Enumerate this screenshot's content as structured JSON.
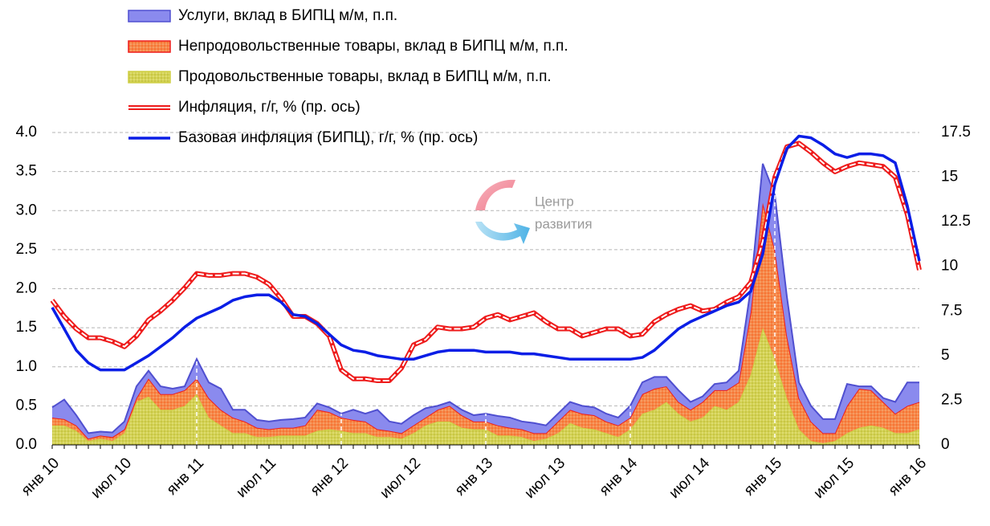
{
  "chart_data": {
    "type": "stacked-area-line",
    "categories": [
      "янв 10",
      null,
      null,
      null,
      null,
      null,
      "июл 10",
      null,
      null,
      null,
      null,
      null,
      "янв 11",
      null,
      null,
      null,
      null,
      null,
      "июл 11",
      null,
      null,
      null,
      null,
      null,
      "янв 12",
      null,
      null,
      null,
      null,
      null,
      "июл 12",
      null,
      null,
      null,
      null,
      null,
      "янв 13",
      null,
      null,
      null,
      null,
      null,
      "июл 13",
      null,
      null,
      null,
      null,
      null,
      "янв 14",
      null,
      null,
      null,
      null,
      null,
      "июл 14",
      null,
      null,
      null,
      null,
      null,
      "янв 15",
      null,
      null,
      null,
      null,
      null,
      "июл 15",
      null,
      null,
      null,
      null,
      null,
      "янв 16"
    ],
    "series": [
      {
        "name": "Услуги, вклад в БИПЦ м/м, п.п.",
        "kind": "area",
        "color": "#8a8aee",
        "stroke": "#4f4fd0",
        "values": [
          0.13,
          0.25,
          0.13,
          0.07,
          0.05,
          0.06,
          0.1,
          0.15,
          0.1,
          0.1,
          0.07,
          0.05,
          0.25,
          0.2,
          0.27,
          0.1,
          0.15,
          0.1,
          0.1,
          0.1,
          0.11,
          0.1,
          0.08,
          0.06,
          0.05,
          0.13,
          0.1,
          0.25,
          0.12,
          0.12,
          0.13,
          0.12,
          0.05,
          0.05,
          0.07,
          0.08,
          0.1,
          0.12,
          0.13,
          0.1,
          0.13,
          0.1,
          0.1,
          0.1,
          0.1,
          0.1,
          0.1,
          0.1,
          0.15,
          0.15,
          0.15,
          0.12,
          0.15,
          0.1,
          0.07,
          0.08,
          0.1,
          0.15,
          0.3,
          0.5,
          0.7,
          0.5,
          0.2,
          0.2,
          0.18,
          0.18,
          0.28,
          0.03,
          0.05,
          0.05,
          0.15,
          0.3,
          0.25
        ]
      },
      {
        "name": "Непродовольственные товары, вклад в БИПЦ м/м, п.п.",
        "kind": "area",
        "color": "#f4894a",
        "stroke": "#ee1c1c",
        "values": [
          0.1,
          0.08,
          0.07,
          0.03,
          0.04,
          0.05,
          0.05,
          0.05,
          0.23,
          0.2,
          0.2,
          0.2,
          0.2,
          0.25,
          0.2,
          0.2,
          0.15,
          0.12,
          0.1,
          0.1,
          0.1,
          0.13,
          0.27,
          0.22,
          0.17,
          0.17,
          0.15,
          0.1,
          0.08,
          0.07,
          0.1,
          0.1,
          0.15,
          0.2,
          0.16,
          0.1,
          0.1,
          0.13,
          0.1,
          0.1,
          0.1,
          0.07,
          0.15,
          0.17,
          0.18,
          0.18,
          0.15,
          0.15,
          0.15,
          0.25,
          0.27,
          0.2,
          0.15,
          0.15,
          0.2,
          0.2,
          0.25,
          0.25,
          0.8,
          1.6,
          1.4,
          0.8,
          0.4,
          0.25,
          0.13,
          0.1,
          0.35,
          0.5,
          0.45,
          0.33,
          0.25,
          0.35,
          0.35
        ]
      },
      {
        "name": "Продовольственные товары, вклад в БИПЦ м/м, п.п.",
        "kind": "area",
        "color": "#cfcf45",
        "stroke": "#cfcf45",
        "values": [
          0.25,
          0.25,
          0.18,
          0.05,
          0.08,
          0.05,
          0.15,
          0.55,
          0.62,
          0.45,
          0.45,
          0.5,
          0.65,
          0.35,
          0.25,
          0.15,
          0.15,
          0.1,
          0.1,
          0.12,
          0.12,
          0.12,
          0.18,
          0.2,
          0.18,
          0.15,
          0.15,
          0.1,
          0.1,
          0.08,
          0.15,
          0.25,
          0.3,
          0.3,
          0.22,
          0.2,
          0.2,
          0.12,
          0.12,
          0.1,
          0.05,
          0.08,
          0.15,
          0.28,
          0.22,
          0.2,
          0.15,
          0.1,
          0.2,
          0.4,
          0.45,
          0.55,
          0.4,
          0.3,
          0.35,
          0.5,
          0.45,
          0.55,
          0.9,
          1.5,
          1.1,
          0.6,
          0.2,
          0.05,
          0.02,
          0.05,
          0.15,
          0.22,
          0.25,
          0.22,
          0.15,
          0.15,
          0.2
        ]
      },
      {
        "name": "Инфляция, г/г, % (пр. ось)",
        "kind": "double-line",
        "axis": "y2",
        "color": "#ee1c1c",
        "values": [
          8.1,
          7.2,
          6.5,
          6.0,
          6.0,
          5.8,
          5.5,
          6.1,
          7.0,
          7.5,
          8.1,
          8.8,
          9.6,
          9.5,
          9.5,
          9.6,
          9.6,
          9.4,
          9.0,
          8.2,
          7.2,
          7.2,
          6.8,
          6.1,
          4.2,
          3.7,
          3.7,
          3.6,
          3.6,
          4.3,
          5.6,
          5.9,
          6.6,
          6.5,
          6.5,
          6.6,
          7.1,
          7.3,
          7.0,
          7.2,
          7.4,
          6.9,
          6.5,
          6.5,
          6.1,
          6.3,
          6.5,
          6.5,
          6.1,
          6.2,
          6.9,
          7.3,
          7.6,
          7.8,
          7.5,
          7.6,
          8.0,
          8.3,
          9.1,
          11.4,
          15.0,
          16.7,
          16.9,
          16.4,
          15.8,
          15.3,
          15.6,
          15.8,
          15.7,
          15.6,
          15.0,
          12.9,
          9.8
        ]
      },
      {
        "name": "Базовая инфляция  (БИПЦ), г/г, % (пр. ось)",
        "kind": "line",
        "axis": "y2",
        "color": "#0a1ee6",
        "values": [
          7.7,
          6.5,
          5.3,
          4.6,
          4.2,
          4.2,
          4.2,
          4.6,
          5.0,
          5.5,
          6.0,
          6.6,
          7.1,
          7.4,
          7.7,
          8.1,
          8.3,
          8.4,
          8.4,
          8.0,
          7.3,
          7.2,
          6.8,
          6.2,
          5.6,
          5.3,
          5.2,
          5.0,
          4.9,
          4.8,
          4.8,
          5.0,
          5.2,
          5.3,
          5.3,
          5.3,
          5.2,
          5.2,
          5.2,
          5.1,
          5.1,
          5.0,
          4.9,
          4.8,
          4.8,
          4.8,
          4.8,
          4.8,
          4.8,
          4.9,
          5.3,
          5.9,
          6.5,
          6.9,
          7.2,
          7.5,
          7.8,
          8.0,
          8.6,
          10.7,
          14.6,
          16.6,
          17.3,
          17.2,
          16.8,
          16.3,
          16.1,
          16.3,
          16.3,
          16.2,
          15.8,
          13.4,
          10.3
        ]
      }
    ],
    "stacked": true,
    "ylim": [
      0,
      4
    ],
    "yticks": [
      {
        "value": 0,
        "label": "0.0"
      },
      0.5,
      {
        "value": 1,
        "label": "1.0"
      },
      1.5,
      {
        "value": 2,
        "label": "2.0"
      },
      2.5,
      {
        "value": 3,
        "label": "3.0"
      },
      3.5,
      {
        "value": 4,
        "label": "4.0"
      }
    ],
    "y2lim": [
      0,
      17.5
    ],
    "y2ticks": [
      0,
      2.5,
      5,
      7.5,
      10,
      12.5,
      15,
      17.5
    ],
    "grid": true,
    "legend": "top-left",
    "annotations": [
      "Центр",
      "развития"
    ]
  }
}
